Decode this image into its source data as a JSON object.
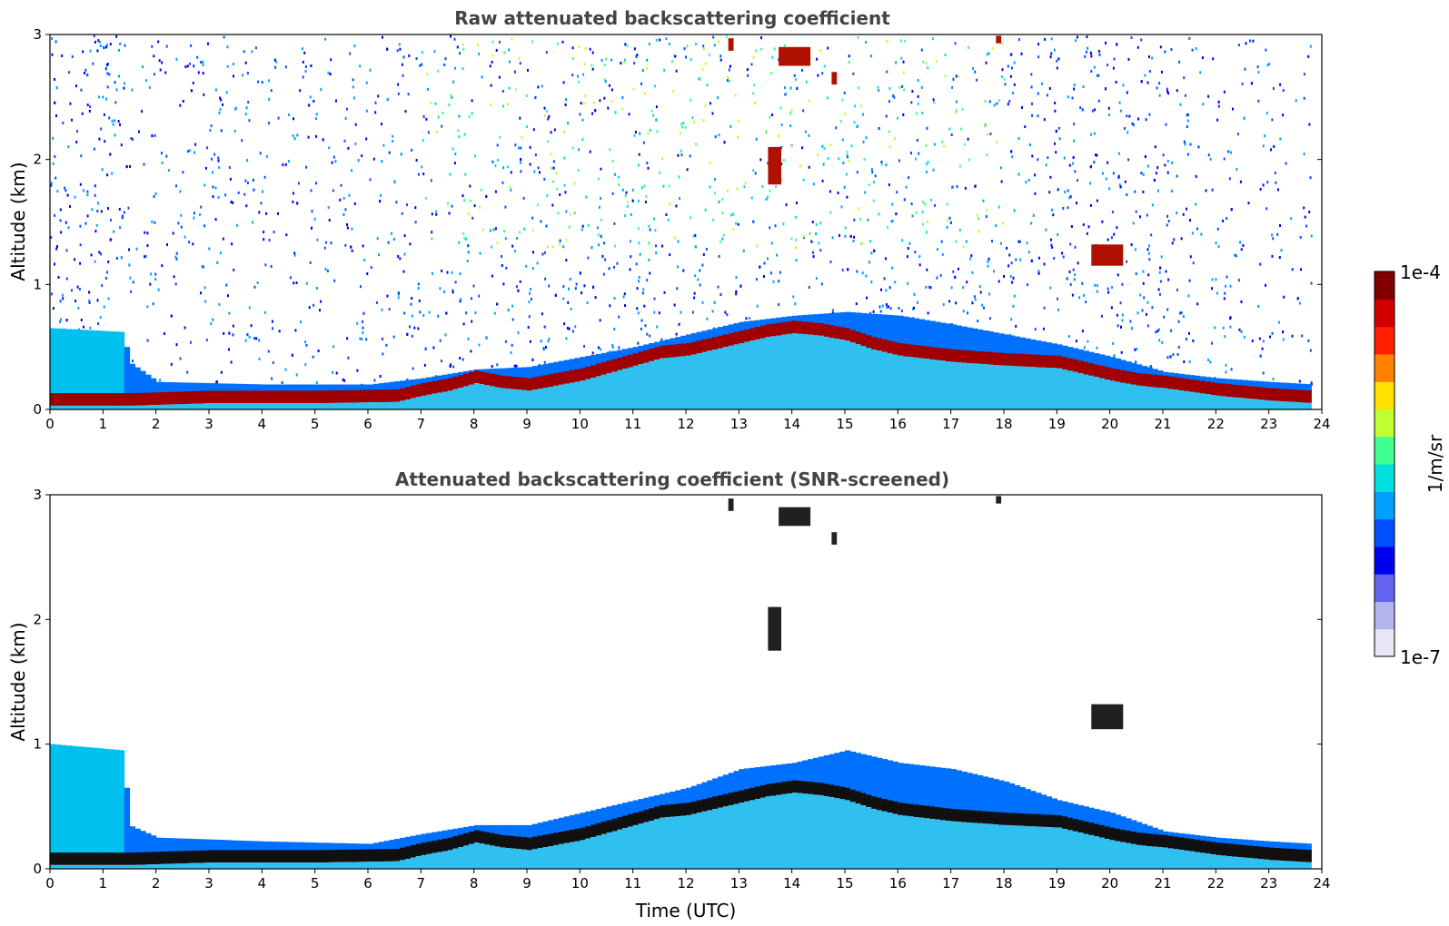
{
  "chart_data": [
    {
      "type": "heatmap",
      "title": "Raw attenuated backscattering coefficient",
      "xlabel": "",
      "ylabel": "Altitude (km)",
      "xlim": [
        0,
        24
      ],
      "ylim": [
        0,
        3
      ],
      "xticks": [
        "0",
        "1",
        "2",
        "3",
        "4",
        "5",
        "6",
        "7",
        "8",
        "9",
        "10",
        "11",
        "12",
        "13",
        "14",
        "15",
        "16",
        "17",
        "18",
        "19",
        "20",
        "21",
        "22",
        "23",
        "24"
      ],
      "yticks": [
        "0",
        "1",
        "2",
        "3"
      ],
      "grid": false,
      "noise": "high",
      "layer_top_km": [
        [
          0,
          0.1
        ],
        [
          1.4,
          0.1
        ],
        [
          1.5,
          0.1
        ],
        [
          3,
          0.12
        ],
        [
          5,
          0.12
        ],
        [
          6.5,
          0.13
        ],
        [
          7,
          0.18
        ],
        [
          7.5,
          0.22
        ],
        [
          8,
          0.28
        ],
        [
          8.5,
          0.24
        ],
        [
          9,
          0.22
        ],
        [
          9.5,
          0.26
        ],
        [
          10,
          0.3
        ],
        [
          10.5,
          0.36
        ],
        [
          11,
          0.42
        ],
        [
          11.5,
          0.48
        ],
        [
          12,
          0.5
        ],
        [
          12.5,
          0.55
        ],
        [
          13,
          0.6
        ],
        [
          13.5,
          0.65
        ],
        [
          14,
          0.68
        ],
        [
          14.5,
          0.66
        ],
        [
          15,
          0.62
        ],
        [
          15.5,
          0.55
        ],
        [
          16,
          0.5
        ],
        [
          17,
          0.45
        ],
        [
          18,
          0.42
        ],
        [
          19,
          0.4
        ],
        [
          19.5,
          0.35
        ],
        [
          20,
          0.3
        ],
        [
          20.5,
          0.26
        ],
        [
          21,
          0.24
        ],
        [
          22,
          0.18
        ],
        [
          23,
          0.14
        ],
        [
          23.8,
          0.12
        ]
      ],
      "aerosol_top_km": [
        [
          0,
          0.65
        ],
        [
          1.35,
          0.62
        ],
        [
          1.45,
          0.38
        ],
        [
          2,
          0.22
        ],
        [
          4,
          0.2
        ],
        [
          6,
          0.2
        ],
        [
          7,
          0.25
        ],
        [
          8,
          0.32
        ],
        [
          9,
          0.34
        ],
        [
          10,
          0.42
        ],
        [
          11,
          0.5
        ],
        [
          12,
          0.6
        ],
        [
          13,
          0.7
        ],
        [
          14,
          0.75
        ],
        [
          15,
          0.78
        ],
        [
          16,
          0.75
        ],
        [
          17,
          0.68
        ],
        [
          18,
          0.6
        ],
        [
          19,
          0.52
        ],
        [
          20,
          0.42
        ],
        [
          21,
          0.3
        ],
        [
          22,
          0.25
        ],
        [
          23,
          0.22
        ],
        [
          23.8,
          0.2
        ]
      ],
      "clouds": [
        {
          "x0": 13.75,
          "x1": 14.35,
          "y0": 2.75,
          "y1": 2.9
        },
        {
          "x0": 12.8,
          "x1": 12.9,
          "y0": 2.87,
          "y1": 2.97
        },
        {
          "x0": 13.55,
          "x1": 13.8,
          "y0": 1.8,
          "y1": 2.1
        },
        {
          "x0": 14.75,
          "x1": 14.85,
          "y0": 2.6,
          "y1": 2.7
        },
        {
          "x0": 17.85,
          "x1": 17.95,
          "y0": 2.93,
          "y1": 2.99
        },
        {
          "x0": 19.65,
          "x1": 20.25,
          "y0": 1.15,
          "y1": 1.32
        }
      ]
    },
    {
      "type": "heatmap",
      "title": "Attenuated backscattering coefficient (SNR-screened)",
      "xlabel": "Time (UTC)",
      "ylabel": "Altitude (km)",
      "xlim": [
        0,
        24
      ],
      "ylim": [
        0,
        3
      ],
      "xticks": [
        "0",
        "1",
        "2",
        "3",
        "4",
        "5",
        "6",
        "7",
        "8",
        "9",
        "10",
        "11",
        "12",
        "13",
        "14",
        "15",
        "16",
        "17",
        "18",
        "19",
        "20",
        "21",
        "22",
        "23",
        "24"
      ],
      "yticks": [
        "0",
        "1",
        "2",
        "3"
      ],
      "grid": false,
      "noise": "screened",
      "layer_top_km": [
        [
          0,
          0.1
        ],
        [
          1.4,
          0.1
        ],
        [
          1.5,
          0.1
        ],
        [
          3,
          0.12
        ],
        [
          5,
          0.12
        ],
        [
          6.5,
          0.13
        ],
        [
          7,
          0.18
        ],
        [
          7.5,
          0.22
        ],
        [
          8,
          0.28
        ],
        [
          8.5,
          0.24
        ],
        [
          9,
          0.22
        ],
        [
          9.5,
          0.26
        ],
        [
          10,
          0.3
        ],
        [
          10.5,
          0.36
        ],
        [
          11,
          0.42
        ],
        [
          11.5,
          0.48
        ],
        [
          12,
          0.5
        ],
        [
          12.5,
          0.55
        ],
        [
          13,
          0.6
        ],
        [
          13.5,
          0.65
        ],
        [
          14,
          0.68
        ],
        [
          14.5,
          0.66
        ],
        [
          15,
          0.62
        ],
        [
          15.5,
          0.55
        ],
        [
          16,
          0.5
        ],
        [
          17,
          0.45
        ],
        [
          18,
          0.42
        ],
        [
          19,
          0.4
        ],
        [
          19.5,
          0.35
        ],
        [
          20,
          0.3
        ],
        [
          20.5,
          0.26
        ],
        [
          21,
          0.24
        ],
        [
          22,
          0.18
        ],
        [
          23,
          0.14
        ],
        [
          23.8,
          0.12
        ]
      ],
      "aerosol_top_km": [
        [
          0,
          1.0
        ],
        [
          1.35,
          0.95
        ],
        [
          1.45,
          0.35
        ],
        [
          2,
          0.25
        ],
        [
          4,
          0.22
        ],
        [
          6,
          0.2
        ],
        [
          7,
          0.28
        ],
        [
          8,
          0.35
        ],
        [
          9,
          0.35
        ],
        [
          10,
          0.45
        ],
        [
          11,
          0.55
        ],
        [
          12,
          0.65
        ],
        [
          13,
          0.8
        ],
        [
          14,
          0.85
        ],
        [
          15,
          0.95
        ],
        [
          16,
          0.85
        ],
        [
          17,
          0.8
        ],
        [
          18,
          0.7
        ],
        [
          19,
          0.55
        ],
        [
          20,
          0.45
        ],
        [
          21,
          0.3
        ],
        [
          22,
          0.25
        ],
        [
          23,
          0.22
        ],
        [
          23.8,
          0.2
        ]
      ],
      "clouds": [
        {
          "x0": 13.75,
          "x1": 14.35,
          "y0": 2.75,
          "y1": 2.9
        },
        {
          "x0": 12.8,
          "x1": 12.9,
          "y0": 2.87,
          "y1": 2.97
        },
        {
          "x0": 13.55,
          "x1": 13.8,
          "y0": 1.75,
          "y1": 2.1
        },
        {
          "x0": 14.75,
          "x1": 14.85,
          "y0": 2.6,
          "y1": 2.7
        },
        {
          "x0": 17.85,
          "x1": 17.95,
          "y0": 2.93,
          "y1": 2.99
        },
        {
          "x0": 19.65,
          "x1": 20.25,
          "y0": 1.12,
          "y1": 1.32
        }
      ]
    }
  ],
  "colorbar": {
    "label": "1/m/sr",
    "max_label": "1e-4",
    "min_label": "1e-7",
    "scale": "log",
    "colors": [
      "#e6e6f5",
      "#b4b4ee",
      "#6464f0",
      "#0000f0",
      "#0050ff",
      "#00a0ff",
      "#00e0e0",
      "#40ff90",
      "#c0ff30",
      "#ffe000",
      "#ff8000",
      "#ff2000",
      "#d00000",
      "#800000"
    ]
  }
}
